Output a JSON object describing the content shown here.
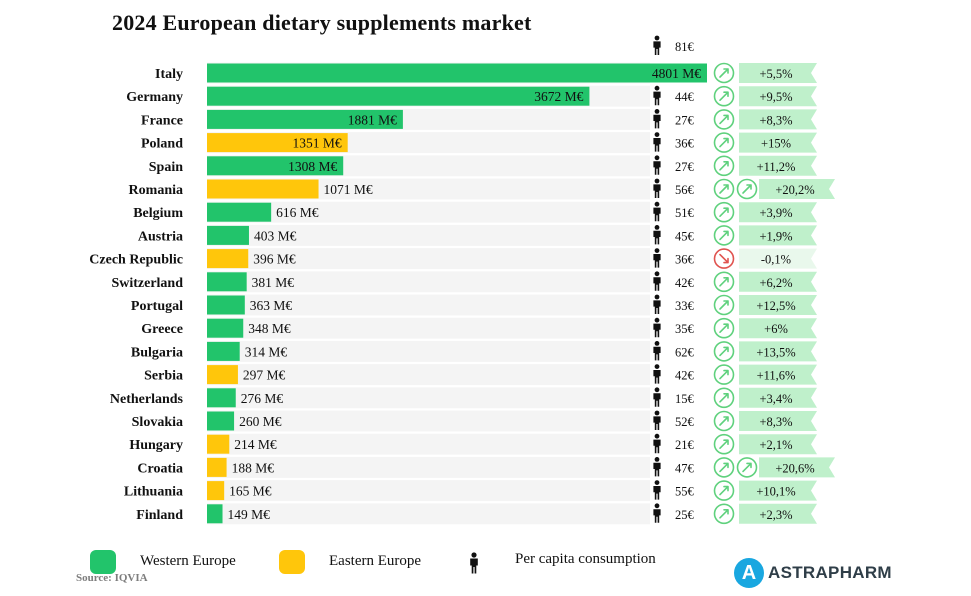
{
  "title": "2024 European dietary supplements market",
  "colors": {
    "western": "#22c46b",
    "eastern": "#ffc60b",
    "growth_up": "#5fd17d",
    "growth_down": "#e0534f",
    "row_band": "#f4f4f4"
  },
  "legend": {
    "western": "Western Europe",
    "eastern": "Eastern Europe",
    "per_capita": "Per capita consumption"
  },
  "source": "Source: IQVIA",
  "brand": {
    "mark": "A",
    "name": "ASTRAPHARM"
  },
  "chart_data": {
    "type": "bar",
    "orientation": "horizontal",
    "unit": "M€",
    "categories": [
      "Italy",
      "Germany",
      "France",
      "Poland",
      "Spain",
      "Romania",
      "Belgium",
      "Austria",
      "Czech Republic",
      "Switzerland",
      "Portugal",
      "Greece",
      "Bulgaria",
      "Serbia",
      "Netherlands",
      "Slovakia",
      "Hungary",
      "Croatia",
      "Lithuania",
      "Finland"
    ],
    "values": [
      4801,
      3672,
      1881,
      1351,
      1308,
      1071,
      616,
      403,
      396,
      381,
      363,
      348,
      314,
      297,
      276,
      260,
      214,
      188,
      165,
      149
    ],
    "value_labels": [
      "4801 M€",
      "3672 M€",
      "1881 M€",
      "1351 M€",
      "1308 M€",
      "1071 M€",
      "616 M€",
      "403 M€",
      "396 M€",
      "381 M€",
      "363 M€",
      "348 M€",
      "314 M€",
      "297 M€",
      "276 M€",
      "260 M€",
      "214 M€",
      "188 M€",
      "165 M€",
      "149 M€"
    ],
    "region": [
      "western",
      "western",
      "western",
      "eastern",
      "western",
      "eastern",
      "western",
      "western",
      "eastern",
      "western",
      "western",
      "western",
      "western",
      "eastern",
      "western",
      "western",
      "eastern",
      "eastern",
      "eastern",
      "western"
    ],
    "per_capita": [
      "81€",
      "44€",
      "27€",
      "36€",
      "27€",
      "56€",
      "51€",
      "45€",
      "36€",
      "42€",
      "33€",
      "35€",
      "62€",
      "42€",
      "15€",
      "52€",
      "21€",
      "47€",
      "55€",
      "25€"
    ],
    "growth": [
      "+5,5%",
      "+9,5%",
      "+8,3%",
      "+15%",
      "+11,2%",
      "+20,2%",
      "+3,9%",
      "+1,9%",
      "-0,1%",
      "+6,2%",
      "+12,5%",
      "+6%",
      "+13,5%",
      "+11,6%",
      "+3,4%",
      "+8,3%",
      "+2,1%",
      "+20,6%",
      "+10,1%",
      "+2,3%"
    ],
    "growth_arrows": [
      1,
      1,
      1,
      1,
      1,
      2,
      1,
      1,
      1,
      1,
      1,
      1,
      1,
      1,
      1,
      1,
      1,
      2,
      1,
      1
    ],
    "growth_direction": [
      "up",
      "up",
      "up",
      "up",
      "up",
      "up",
      "up",
      "up",
      "down",
      "up",
      "up",
      "up",
      "up",
      "up",
      "up",
      "up",
      "up",
      "up",
      "up",
      "up"
    ]
  }
}
